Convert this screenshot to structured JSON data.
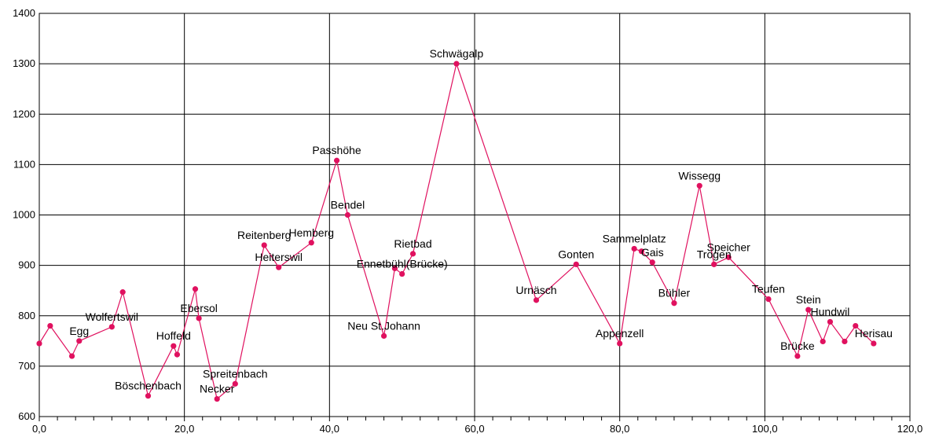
{
  "chart_data": {
    "type": "line",
    "title": "",
    "xlabel": "",
    "ylabel": "",
    "xlim": [
      0,
      120
    ],
    "ylim": [
      600,
      1400
    ],
    "x_ticks": [
      "0,0",
      "20,0",
      "40,0",
      "60,0",
      "80,0",
      "100,0",
      "120,0"
    ],
    "y_ticks": [
      "600",
      "700",
      "800",
      "900",
      "1000",
      "1100",
      "1200",
      "1300",
      "1400"
    ],
    "grid": true,
    "colors": {
      "series": "#e0115f",
      "grid": "#000000"
    },
    "series": [
      {
        "points": [
          {
            "x": 0.0,
            "y": 745,
            "label": ""
          },
          {
            "x": 1.5,
            "y": 780,
            "label": ""
          },
          {
            "x": 4.5,
            "y": 720,
            "label": ""
          },
          {
            "x": 5.5,
            "y": 750,
            "label": "Egg"
          },
          {
            "x": 10.0,
            "y": 778,
            "label": "Wolfertswil"
          },
          {
            "x": 11.5,
            "y": 847,
            "label": ""
          },
          {
            "x": 15.0,
            "y": 641,
            "label": "Böschenbach"
          },
          {
            "x": 18.5,
            "y": 740,
            "label": "Hoffeld"
          },
          {
            "x": 19.0,
            "y": 723,
            "label": ""
          },
          {
            "x": 21.5,
            "y": 853,
            "label": ""
          },
          {
            "x": 22.0,
            "y": 795,
            "label": "Ebersol"
          },
          {
            "x": 24.5,
            "y": 635,
            "label": "Necker"
          },
          {
            "x": 27.0,
            "y": 665,
            "label": "Spreitenbach"
          },
          {
            "x": 31.0,
            "y": 940,
            "label": "Reitenberg"
          },
          {
            "x": 33.0,
            "y": 896,
            "label": "Heiterswil"
          },
          {
            "x": 37.5,
            "y": 945,
            "label": "Hemberg"
          },
          {
            "x": 41.0,
            "y": 1108,
            "label": "Passhöhe"
          },
          {
            "x": 42.5,
            "y": 1000,
            "label": "Bendel"
          },
          {
            "x": 47.5,
            "y": 760,
            "label": "Neu St.Johann"
          },
          {
            "x": 49.0,
            "y": 894,
            "label": ""
          },
          {
            "x": 50.0,
            "y": 883,
            "label": "Ennetbühl(Brücke)"
          },
          {
            "x": 51.5,
            "y": 923,
            "label": "Rietbad"
          },
          {
            "x": 57.5,
            "y": 1300,
            "label": "Schwägalp"
          },
          {
            "x": 68.5,
            "y": 831,
            "label": "Urnäsch"
          },
          {
            "x": 74.0,
            "y": 902,
            "label": "Gonten"
          },
          {
            "x": 80.0,
            "y": 745,
            "label": "Appenzell"
          },
          {
            "x": 82.0,
            "y": 933,
            "label": "Sammelplatz"
          },
          {
            "x": 83.0,
            "y": 928,
            "label": ""
          },
          {
            "x": 84.5,
            "y": 906,
            "label": "Gais"
          },
          {
            "x": 87.5,
            "y": 825,
            "label": "Bühler"
          },
          {
            "x": 91.0,
            "y": 1058,
            "label": "Wissegg"
          },
          {
            "x": 93.0,
            "y": 902,
            "label": "Trogen"
          },
          {
            "x": 95.0,
            "y": 916,
            "label": "Speicher"
          },
          {
            "x": 100.5,
            "y": 833,
            "label": "Teufen"
          },
          {
            "x": 104.5,
            "y": 720,
            "label": "Brücke"
          },
          {
            "x": 106.0,
            "y": 812,
            "label": "Stein"
          },
          {
            "x": 108.0,
            "y": 749,
            "label": ""
          },
          {
            "x": 109.0,
            "y": 788,
            "label": "Hundwil"
          },
          {
            "x": 111.0,
            "y": 749,
            "label": ""
          },
          {
            "x": 112.5,
            "y": 780,
            "label": ""
          },
          {
            "x": 115.0,
            "y": 745,
            "label": "Herisau"
          }
        ]
      }
    ]
  }
}
